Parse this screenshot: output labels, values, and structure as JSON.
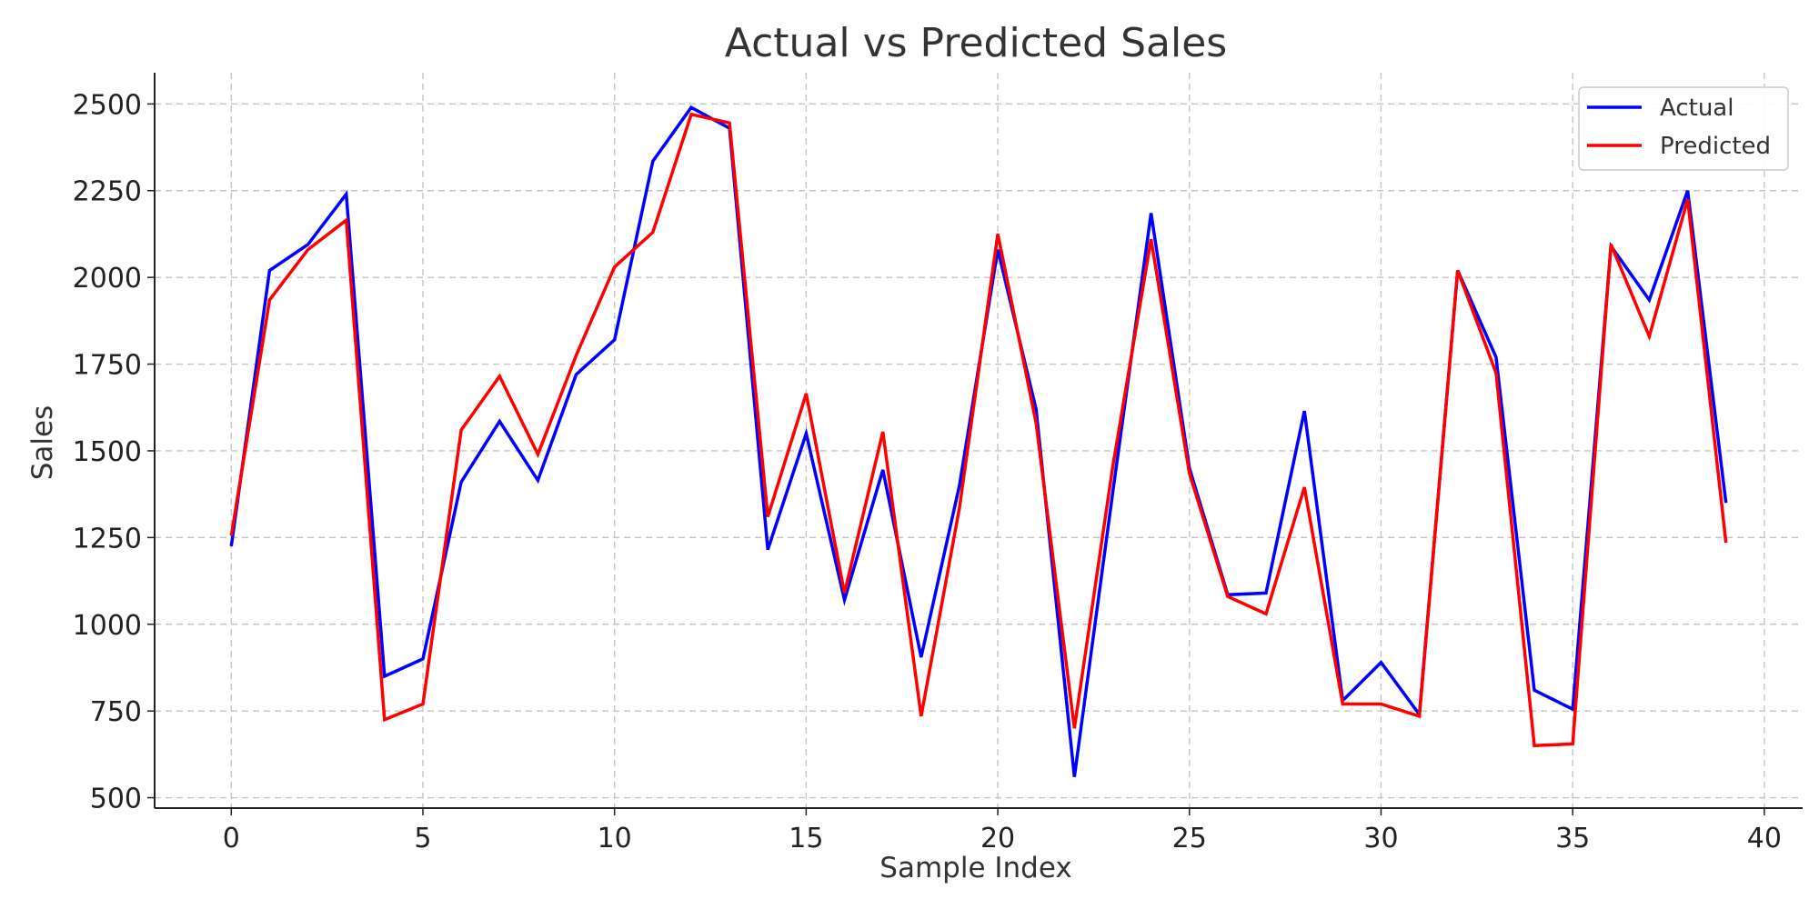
{
  "chart_data": {
    "type": "line",
    "title": "Actual vs Predicted Sales",
    "xlabel": "Sample Index",
    "ylabel": "Sales",
    "xlim": [
      -2,
      41
    ],
    "ylim": [
      470,
      2590
    ],
    "xticks": [
      0,
      5,
      10,
      15,
      20,
      25,
      30,
      35,
      40
    ],
    "yticks": [
      500,
      750,
      1000,
      1250,
      1500,
      1750,
      2000,
      2250,
      2500
    ],
    "grid": true,
    "legend_position": "top-right",
    "x": [
      0,
      1,
      2,
      3,
      4,
      5,
      6,
      7,
      8,
      9,
      10,
      11,
      12,
      13,
      14,
      15,
      16,
      17,
      18,
      19,
      20,
      21,
      22,
      23,
      24,
      25,
      26,
      27,
      28,
      29,
      30,
      31,
      32,
      33,
      34,
      35,
      36,
      37,
      38,
      39
    ],
    "series": [
      {
        "name": "Actual",
        "color": "#0000ff",
        "values": [
          1225,
          2020,
          2095,
          2240,
          850,
          900,
          1410,
          1585,
          1415,
          1720,
          1820,
          2335,
          2490,
          2430,
          1215,
          1550,
          1070,
          1445,
          905,
          1400,
          2080,
          1620,
          560,
          1380,
          2185,
          1450,
          1085,
          1090,
          1615,
          780,
          890,
          740,
          2020,
          1770,
          810,
          755,
          2090,
          1935,
          2250,
          1350
        ]
      },
      {
        "name": "Predicted",
        "color": "#ff0000",
        "values": [
          1255,
          1935,
          2080,
          2165,
          725,
          770,
          1560,
          1715,
          1490,
          1775,
          2030,
          2130,
          2470,
          2445,
          1310,
          1665,
          1090,
          1555,
          735,
          1335,
          2125,
          1580,
          700,
          1455,
          2110,
          1435,
          1080,
          1030,
          1395,
          770,
          770,
          735,
          2020,
          1725,
          650,
          655,
          2095,
          1830,
          2225,
          1235
        ]
      }
    ]
  }
}
